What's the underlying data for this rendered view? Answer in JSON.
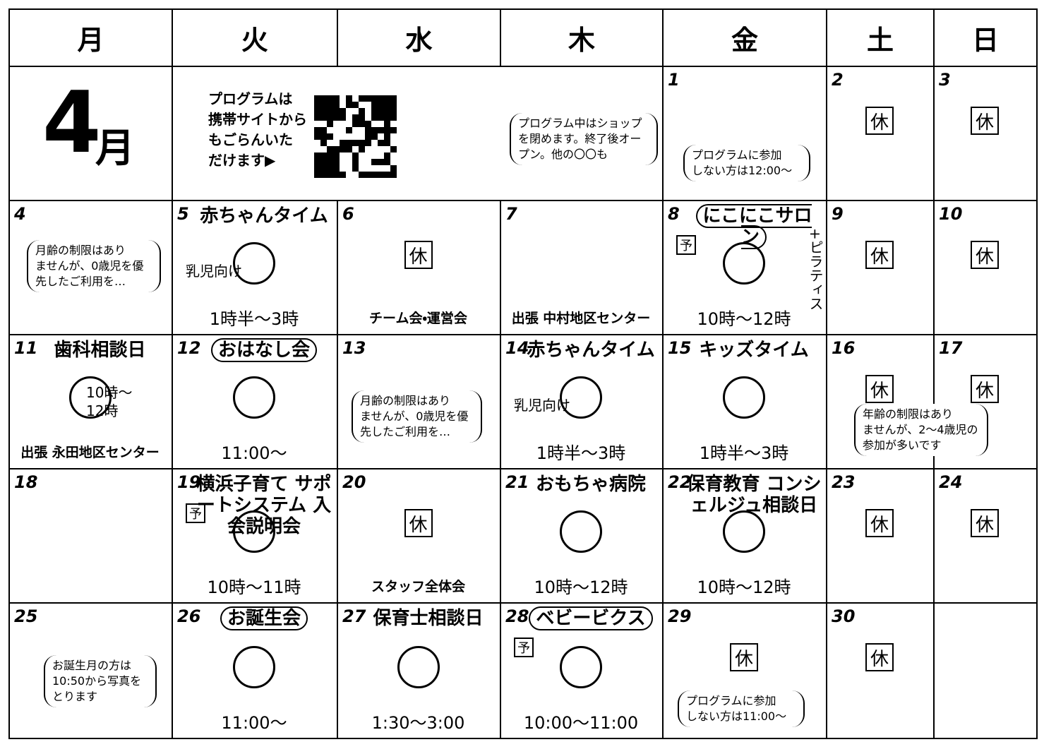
{
  "weekdays": [
    "月",
    "火",
    "水",
    "木",
    "金",
    "土",
    "日"
  ],
  "month": {
    "number": "4",
    "unit": "月"
  },
  "qr_note": [
    "プログラムは",
    "携帯サイトから",
    "もごらんいた",
    "だけます▶"
  ],
  "days": [
    {
      "day": 1
    },
    {
      "day": 2,
      "badge": "休"
    },
    {
      "day": 3,
      "badge": "休"
    },
    {
      "day": 4
    },
    {
      "day": 5,
      "title": "赤ちゃんタイム",
      "note": "乳児向け",
      "time": "1時半～3時"
    },
    {
      "day": 6,
      "badge": "休",
      "place": "チーム会・運営会"
    },
    {
      "day": 7,
      "place": "出張 中村地区センター"
    },
    {
      "day": 8,
      "title": "にこにこサロン",
      "framed": true,
      "mark": "予",
      "extra": "+ピラティス",
      "time": "10時～12時"
    },
    {
      "day": 9,
      "badge": "休"
    },
    {
      "day": 10,
      "badge": "休"
    },
    {
      "day": 11,
      "title": "歯科相談日",
      "note": "10時～12時",
      "place": "出張 永田地区センター"
    },
    {
      "day": 12,
      "title": "おはなし会",
      "framed": true,
      "time": "11:00～"
    },
    {
      "day": 13
    },
    {
      "day": 14,
      "title": "赤ちゃんタイム",
      "note": "乳児向け",
      "time": "1時半～3時"
    },
    {
      "day": 15,
      "title": "キッズタイム",
      "time": "1時半～3時"
    },
    {
      "day": 16,
      "badge": "休"
    },
    {
      "day": 17,
      "badge": "休"
    },
    {
      "day": 18
    },
    {
      "day": 19,
      "title": "横浜子育て サポートシステム 入会説明会",
      "mark": "予",
      "time": "10時～11時"
    },
    {
      "day": 20,
      "badge": "休",
      "place": "スタッフ全体会"
    },
    {
      "day": 21,
      "title": "おもちゃ病院",
      "time": "10時～12時"
    },
    {
      "day": 22,
      "title": "保育教育 コンシェルジュ相談日",
      "time": "10時～12時"
    },
    {
      "day": 23,
      "badge": "休"
    },
    {
      "day": 24,
      "badge": "休"
    },
    {
      "day": 25
    },
    {
      "day": 26,
      "title": "お誕生会",
      "framed": true,
      "time": "11:00～"
    },
    {
      "day": 27,
      "title": "保育士相談日",
      "time": "1:30～3:00"
    },
    {
      "day": 28,
      "title": "ベビービクス",
      "framed": true,
      "mark": "予",
      "time": "10:00～11:00"
    },
    {
      "day": 29,
      "badge": "休"
    },
    {
      "day": 30,
      "badge": "休"
    }
  ],
  "callouts": [
    [
      "プログラム中はショップ",
      "を閉めます。終了後オー",
      "プン。他の〇〇も"
    ],
    [
      "プログラムに参加",
      "しない方は12:00～"
    ],
    [
      "月齢の制限はあり",
      "ませんが、0歳児を優",
      "先したご利用を…"
    ],
    [
      "月齢の制限はあり",
      "ませんが、0歳児を優",
      "先したご利用を…"
    ],
    [
      "年齢の制限はあり",
      "ませんが、2～4歳児の",
      "参加が多いです"
    ],
    [
      "お誕生月の方は",
      "10:50から写真を",
      "とります"
    ],
    [
      "プログラムに参加",
      "しない方は11:00～"
    ]
  ]
}
